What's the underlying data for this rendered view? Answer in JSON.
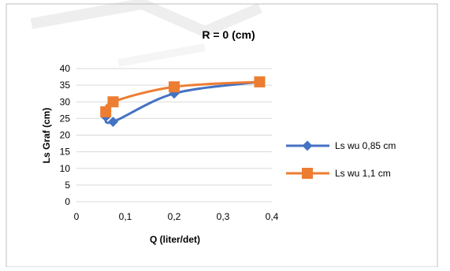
{
  "chart_data": {
    "type": "line",
    "title": "R = 0 (cm)",
    "xlabel": "Q (liter/det)",
    "ylabel": "Ls Graf (cm)",
    "xlim": [
      0,
      0.4
    ],
    "ylim": [
      0,
      40
    ],
    "x_ticks": [
      "0",
      "0,1",
      "0,2",
      "0,3",
      "0,4"
    ],
    "y_ticks": [
      "0",
      "5",
      "10",
      "15",
      "20",
      "25",
      "30",
      "35",
      "40"
    ],
    "grid": "horizontal",
    "legend_position": "right",
    "series": [
      {
        "name": "Ls wu 0,85 cm",
        "color": "#4472C4",
        "marker": "diamond",
        "points": [
          {
            "x": 0.06,
            "y": 25.5
          },
          {
            "x": 0.075,
            "y": 24
          },
          {
            "x": 0.2,
            "y": 32.5
          },
          {
            "x": 0.375,
            "y": 36
          }
        ]
      },
      {
        "name": "Ls wu 1,1 cm",
        "color": "#ED7D31",
        "marker": "square",
        "points": [
          {
            "x": 0.06,
            "y": 27
          },
          {
            "x": 0.075,
            "y": 30
          },
          {
            "x": 0.2,
            "y": 34.5
          },
          {
            "x": 0.375,
            "y": 36
          }
        ]
      }
    ]
  }
}
